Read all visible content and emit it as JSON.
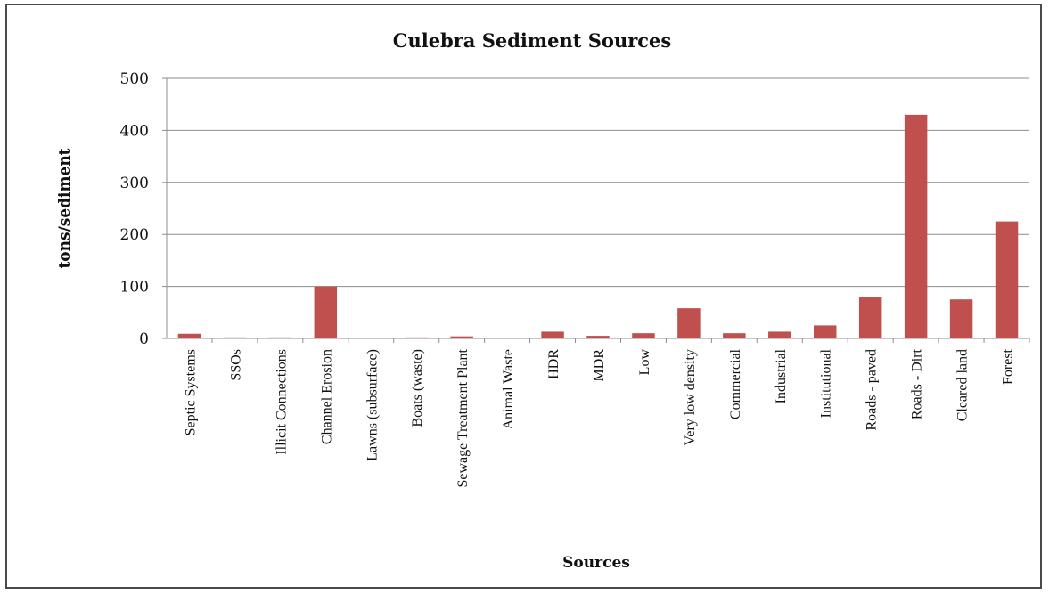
{
  "chart_data": {
    "type": "bar",
    "title": "Culebra Sediment Sources",
    "xlabel": "Sources",
    "ylabel": "tons/sediment",
    "ylim": [
      0,
      500
    ],
    "yticks": [
      0,
      100,
      200,
      300,
      400,
      500
    ],
    "grid": true,
    "legend": "none",
    "bar_color": "#c0504d",
    "categories": [
      "Septic Systems",
      "SSOs",
      "Illicit Connections",
      "Channel Erosion",
      "Lawns (subsurface)",
      "Boats (waste)",
      "Sewage Treatment Plant",
      "Animal Waste",
      "HDR",
      "MDR",
      "Low",
      "Very low density",
      "Commercial",
      "Industrial",
      "Institutional",
      "Roads - paved",
      "Roads - Dirt",
      "Cleared land",
      "Forest"
    ],
    "values": [
      9,
      2,
      2,
      100,
      0,
      2,
      4,
      0,
      13,
      5,
      10,
      58,
      10,
      13,
      25,
      80,
      430,
      75,
      225
    ]
  }
}
